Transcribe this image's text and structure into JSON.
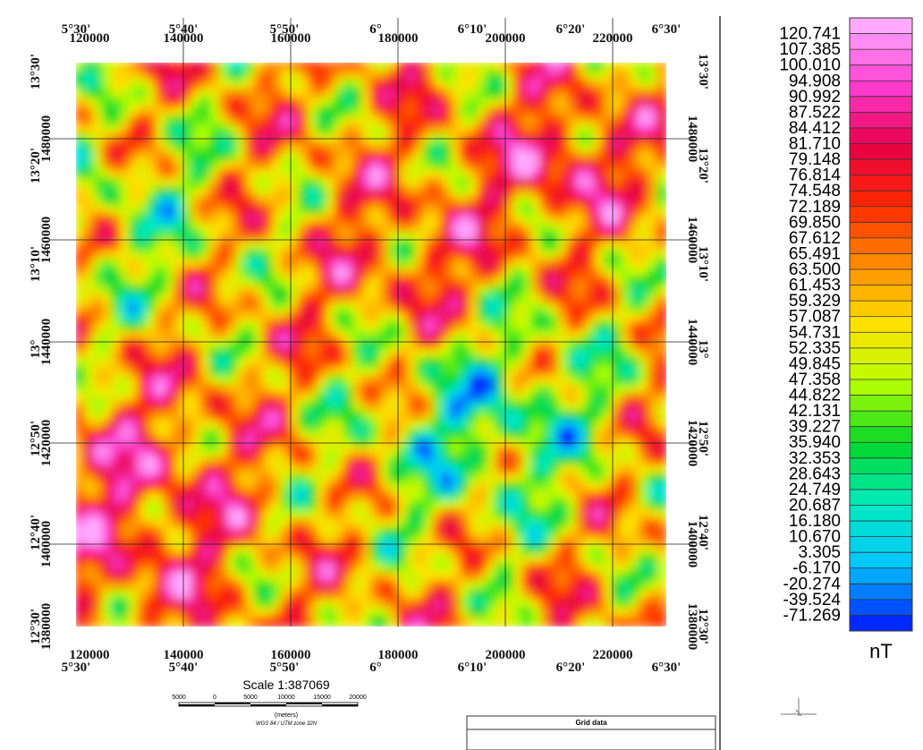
{
  "map": {
    "top_longitudes": [
      "5°30'",
      "5°40'",
      "5°50'",
      "6°",
      "6°10'",
      "6°20'",
      "6°30'"
    ],
    "eastings": [
      "120000",
      "140000",
      "160000",
      "180000",
      "200000",
      "220000"
    ],
    "latitudes": [
      "13°30'",
      "13°20'",
      "13°10'",
      "13°",
      "12°50'",
      "12°40'",
      "12°30'"
    ],
    "northings": [
      "1480000",
      "1460000",
      "1440000",
      "1420000",
      "1400000",
      "1380000"
    ]
  },
  "scale": {
    "title": "Scale 1:387069",
    "ticks": [
      "5000",
      "0",
      "5000",
      "10000",
      "15000",
      "20000"
    ],
    "unit": "(meters)",
    "projection": "WGS 84 / UTM zone 32N"
  },
  "legend": {
    "levels": [
      "120.741",
      "107.385",
      "100.010",
      "94.908",
      "90.992",
      "87.522",
      "84.412",
      "81.710",
      "79.148",
      "76.814",
      "74.548",
      "72.189",
      "69.850",
      "67.612",
      "65.491",
      "63.500",
      "61.453",
      "59.329",
      "57.087",
      "54.731",
      "52.335",
      "49.845",
      "47.358",
      "44.822",
      "42.131",
      "39.227",
      "35.940",
      "32.353",
      "28.643",
      "24.749",
      "20.687",
      "16.180",
      "10.670",
      "3.305",
      "-6.170",
      "-20.274",
      "-39.524",
      "-71.269"
    ],
    "unit": "nT"
  },
  "footer": {
    "label": "Grid data"
  }
}
